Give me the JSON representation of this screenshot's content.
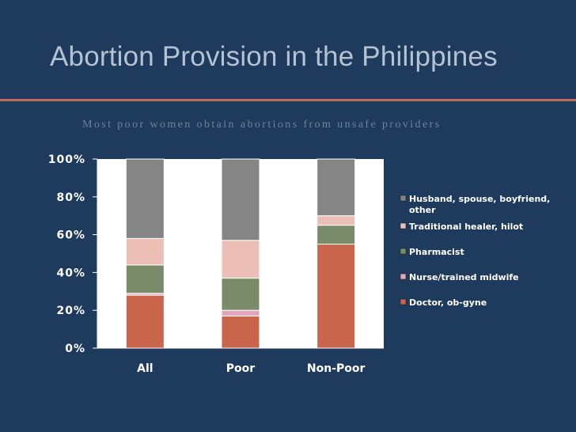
{
  "slide": {
    "title": "Abortion Provision in the Philippines",
    "subtitle": "Most poor women obtain abortions from unsafe providers"
  },
  "colors": {
    "background": "#1e3a5c",
    "accent_rule": "#c4695a",
    "plot_background": "#ffffff"
  },
  "chart_data": {
    "type": "bar",
    "stacked": true,
    "percent": true,
    "categories": [
      "All",
      "Poor",
      "Non-Poor"
    ],
    "y_ticks": [
      "0%",
      "20%",
      "40%",
      "60%",
      "80%",
      "100%"
    ],
    "ylim": [
      0,
      100
    ],
    "grid": false,
    "legend_position": "right",
    "series": [
      {
        "name": "Doctor, ob-gyne",
        "color": "#c8654a",
        "values": [
          28,
          17,
          55
        ]
      },
      {
        "name": "Nurse/trained midwife",
        "color": "#e2a5bb",
        "values": [
          1,
          3,
          0
        ]
      },
      {
        "name": "Pharmacist",
        "color": "#7a8b69",
        "values": [
          15,
          17,
          10
        ]
      },
      {
        "name": "Traditional healer, hilot",
        "color": "#ebbfb5",
        "values": [
          14,
          20,
          5
        ]
      },
      {
        "name": "Husband, spouse, boyfriend, other",
        "color": "#858585",
        "values": [
          42,
          43,
          30
        ]
      }
    ]
  }
}
